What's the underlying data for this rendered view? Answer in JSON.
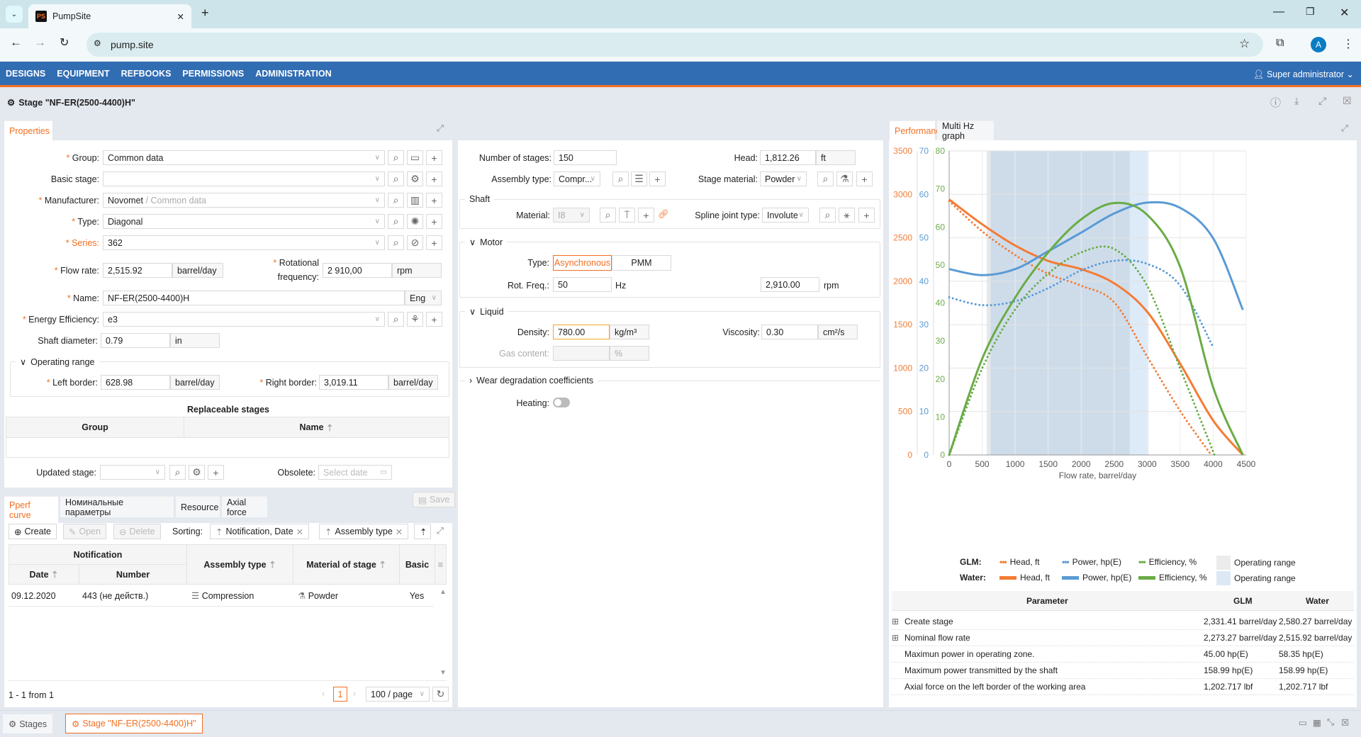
{
  "browser": {
    "tab_title": "PumpSite",
    "url": "pump.site",
    "avatar": "A"
  },
  "nav": {
    "items": [
      "DESIGNS",
      "EQUIPMENT",
      "REFBOOKS",
      "PERMISSIONS",
      "ADMINISTRATION"
    ],
    "user": "Super administrator"
  },
  "page": {
    "title": "Stage \"NF-ER(2500-4400)H\""
  },
  "properties": {
    "tab": "Properties",
    "group": {
      "label": "Group:",
      "value": "Common data"
    },
    "basic_stage": {
      "label": "Basic stage:",
      "value": ""
    },
    "manufacturer": {
      "label": "Manufacturer:",
      "value": "Novomet",
      "suffix": "/ Common data"
    },
    "type": {
      "label": "Type:",
      "value": "Diagonal"
    },
    "series": {
      "label": "Series:",
      "value": "362"
    },
    "flow_rate": {
      "label": "Flow rate:",
      "value": "2,515.92",
      "unit": "barrel/day"
    },
    "rot_freq": {
      "label1": "Rotational",
      "label2": "frequency:",
      "value": "2 910,00",
      "unit": "rpm"
    },
    "name": {
      "label": "Name:",
      "value": "NF-ER(2500-4400)H",
      "lang": "Eng"
    },
    "energy": {
      "label": "Energy Efficiency:",
      "value": "e3"
    },
    "shaft_diameter": {
      "label": "Shaft diameter:",
      "value": "0.79",
      "unit": "in"
    },
    "operating_range": {
      "title": "Operating range",
      "left_label": "Left border:",
      "left_value": "628.98",
      "left_unit": "barrel/day",
      "right_label": "Right border:",
      "right_value": "3,019.11",
      "right_unit": "barrel/day"
    },
    "replaceable": {
      "title": "Replaceable stages",
      "col_group": "Group",
      "col_name": "Name"
    },
    "updated_stage": {
      "label": "Updated stage:",
      "value": ""
    },
    "obsolete": {
      "label": "Obsolete:",
      "placeholder": "Select date"
    }
  },
  "middle": {
    "num_stages": {
      "label": "Number of stages:",
      "value": "150"
    },
    "head": {
      "label": "Head:",
      "value": "1,812.26",
      "unit": "ft"
    },
    "assembly": {
      "label": "Assembly type:",
      "value": "Compr..."
    },
    "stage_material": {
      "label": "Stage material:",
      "value": "Powder"
    },
    "shaft": {
      "title": "Shaft",
      "material_label": "Material:",
      "material_value": "I8",
      "spline_label": "Spline joint type:",
      "spline_value": "Involute"
    },
    "motor": {
      "title": "Motor",
      "type_label": "Type:",
      "types": [
        "Asynchronous",
        "PMM"
      ],
      "freq_label": "Rot. Freq.:",
      "freq_value": "50",
      "freq_unit": "Hz",
      "rpm_value": "2,910.00",
      "rpm_unit": "rpm"
    },
    "liquid": {
      "title": "Liquid",
      "density_label": "Density:",
      "density_value": "780.00",
      "density_unit": "kg/m³",
      "viscosity_label": "Viscosity:",
      "viscosity_value": "0.30",
      "viscosity_unit": "cm²/s",
      "gas_label": "Gas content:",
      "gas_unit": "%"
    },
    "wear": {
      "title": "Wear degradation coefficients"
    },
    "heating": {
      "label": "Heating:",
      "on": false
    }
  },
  "bottom": {
    "tabs": [
      "Pperf curve",
      "Номинальные параметры",
      "Resource",
      "Axial force"
    ],
    "save": "Save",
    "toolbar": {
      "create": "Create",
      "open": "Open",
      "delete": "Delete",
      "sorting": "Sorting:",
      "sort_chips": [
        "Notification, Date",
        "Assembly type"
      ]
    },
    "columns": {
      "notification": "Notification",
      "date": "Date",
      "number": "Number",
      "assembly": "Assembly type",
      "material": "Material of stage",
      "basic": "Basic"
    },
    "rows": [
      {
        "date": "09.12.2020",
        "number": "443 (не действ.)",
        "assembly": "Compression",
        "material": "Powder",
        "basic": "Yes"
      }
    ],
    "pager": {
      "summary": "1 - 1 from 1",
      "page": "1",
      "per_page": "100 / page"
    }
  },
  "performance": {
    "tabs": [
      "Performance",
      "Multi Hz graph"
    ],
    "legend": {
      "glm": "GLM:",
      "water": "Water:",
      "head": "Head, ft",
      "power": "Power, hp(E)",
      "eff": "Efficiency, %",
      "range": "Operating range"
    },
    "table": {
      "headers": [
        "Parameter",
        "GLM",
        "Water"
      ],
      "rows": [
        {
          "expand": true,
          "p": "Create stage",
          "glm": "2,331.41 barrel/day",
          "water": "2,580.27 barrel/day"
        },
        {
          "expand": true,
          "p": "Nominal flow rate",
          "glm": "2,273.27 barrel/day",
          "water": "2,515.92 barrel/day"
        },
        {
          "expand": false,
          "p": "Maximun power in operating zone.",
          "glm": "45.00 hp(E)",
          "water": "58.35 hp(E)"
        },
        {
          "expand": false,
          "p": "Maximum power transmitted by the shaft",
          "glm": "158.99 hp(E)",
          "water": "158.99 hp(E)"
        },
        {
          "expand": false,
          "p": "Axial force on the left border of the working area",
          "glm": "1,202.717 lbf",
          "water": "1,202.717 lbf"
        }
      ]
    }
  },
  "taskbar": {
    "items": [
      "Stages",
      "Stage \"NF-ER(2500-4400)H\""
    ]
  },
  "chart_data": {
    "type": "line",
    "xlabel": "Flow rate, barrel/day",
    "xlim": [
      0,
      4500
    ],
    "xticks": [
      0,
      500,
      1000,
      1500,
      2000,
      2500,
      3000,
      3500,
      4000,
      4500
    ],
    "axes": {
      "head": {
        "ylim": [
          0,
          3500
        ],
        "ticks": [
          0,
          500,
          1000,
          1500,
          2000,
          2500,
          3000,
          3500
        ],
        "color": "#f47c36"
      },
      "power": {
        "ylim": [
          0,
          70
        ],
        "ticks": [
          0,
          10,
          20,
          30,
          40,
          50,
          60,
          70
        ],
        "color": "#5a9bd5"
      },
      "eff": {
        "ylim": [
          0,
          80
        ],
        "ticks": [
          0,
          10,
          20,
          30,
          40,
          50,
          60,
          70,
          80
        ],
        "color": "#6aac46"
      }
    },
    "operating_range": {
      "glm": [
        568,
        2735
      ],
      "water": [
        628.98,
        3019.11
      ]
    },
    "series": [
      {
        "name": "Water Head, ft",
        "axis": "head",
        "style": "solid",
        "x": [
          0,
          500,
          1000,
          1500,
          2000,
          2500,
          3000,
          3500,
          4000,
          4450
        ],
        "y": [
          2942,
          2656,
          2411,
          2234,
          2139,
          1976,
          1649,
          1051,
          397,
          0
        ]
      },
      {
        "name": "GLM Head, ft",
        "axis": "head",
        "style": "dotted",
        "x": [
          0,
          500,
          1000,
          1500,
          2000,
          2500,
          3000,
          3500,
          3970
        ],
        "y": [
          2923,
          2575,
          2302,
          2085,
          1949,
          1758,
          1132,
          506,
          0
        ]
      },
      {
        "name": "Water Power, hp(E)",
        "axis": "power",
        "style": "solid",
        "x": [
          0,
          500,
          1000,
          1500,
          2000,
          2500,
          3000,
          3500,
          4000,
          4450
        ],
        "y": [
          42.8,
          41.4,
          42.8,
          46.9,
          51.2,
          55.6,
          58.1,
          56.9,
          49.9,
          33.4
        ]
      },
      {
        "name": "GLM Power, hp(E)",
        "axis": "power",
        "style": "dotted",
        "x": [
          0,
          500,
          1000,
          1500,
          2000,
          2500,
          3000,
          3500,
          4000
        ],
        "y": [
          36.3,
          34.5,
          35.4,
          38.4,
          42.5,
          44.7,
          44.0,
          39.0,
          24.8
        ]
      },
      {
        "name": "Water Efficiency, %",
        "axis": "eff",
        "style": "solid",
        "x": [
          0,
          500,
          1000,
          1500,
          2000,
          2500,
          3000,
          3500,
          4000,
          4450
        ],
        "y": [
          0,
          25.3,
          41.4,
          53.3,
          62.0,
          66.3,
          63.2,
          49.5,
          17.8,
          0
        ]
      },
      {
        "name": "GLM Efficiency, %",
        "axis": "eff",
        "style": "dotted",
        "x": [
          0,
          500,
          1000,
          1500,
          2000,
          2500,
          3000,
          3500,
          4020
        ],
        "y": [
          0,
          22.8,
          38.3,
          47.7,
          53.3,
          54.2,
          44.5,
          22.8,
          0
        ]
      }
    ]
  }
}
